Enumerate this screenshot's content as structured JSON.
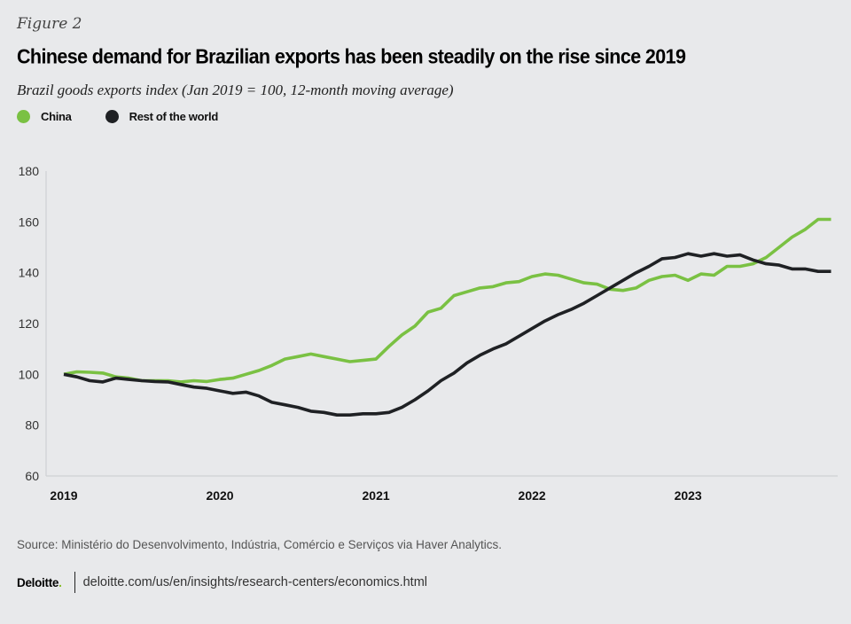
{
  "figure_label": "Figure 2",
  "title": "Chinese demand for Brazilian exports has been steadily on the rise since 2019",
  "subtitle": "Brazil goods exports index (Jan 2019 = 100, 12-month moving average)",
  "legend": [
    {
      "label": "China",
      "color": "#7ac143"
    },
    {
      "label": "Rest of the world",
      "color": "#1f2124"
    }
  ],
  "source": "Source: Ministério do Desenvolvimento, Indústria, Comércio e Serviços via Haver Analytics.",
  "footer": {
    "brand": "Deloitte",
    "brand_dot": ".",
    "url": "deloitte.com/us/en/insights/research-centers/economics.html"
  },
  "chart_data": {
    "type": "line",
    "title": "Chinese demand for Brazilian exports has been steadily on the rise since 2019",
    "subtitle": "Brazil goods exports index (Jan 2019 = 100, 12-month moving average)",
    "xlabel": "",
    "ylabel": "",
    "x_start": "2019-01",
    "x_frequency": "monthly",
    "x_ticks": [
      "2019",
      "2020",
      "2021",
      "2022",
      "2023"
    ],
    "y_ticks": [
      60,
      80,
      100,
      120,
      140,
      160,
      180
    ],
    "ylim": [
      60,
      180
    ],
    "grid": false,
    "legend_position": "top-left",
    "series": [
      {
        "name": "China",
        "color": "#7ac143",
        "values": [
          100,
          101,
          100.8,
          100.5,
          99,
          98.5,
          97.5,
          97.5,
          97.5,
          97,
          97.5,
          97.2,
          98,
          98.5,
          100,
          101.5,
          103.5,
          106,
          107,
          108,
          107,
          106,
          105,
          105.5,
          106,
          111,
          115.5,
          119,
          124.5,
          126,
          131,
          132.5,
          134,
          134.5,
          136,
          136.5,
          138.5,
          139.5,
          139,
          137.5,
          136,
          135.5,
          133.5,
          133,
          134,
          137,
          138.5,
          139,
          137,
          139.5,
          139,
          142.5,
          142.5,
          143.5,
          146,
          150,
          154,
          157,
          161,
          161
        ]
      },
      {
        "name": "Rest of the world",
        "color": "#1f2124",
        "values": [
          100,
          99,
          97.5,
          97,
          98.5,
          98,
          97.5,
          97.2,
          97,
          96,
          95,
          94.5,
          93.5,
          92.5,
          93,
          91.5,
          89,
          88,
          87,
          85.5,
          85,
          84,
          84,
          84.5,
          84.5,
          85,
          87,
          90,
          93.5,
          97.5,
          100.5,
          104.5,
          107.5,
          110,
          112,
          115,
          118,
          121,
          123.5,
          125.5,
          128,
          131,
          134,
          137,
          140,
          142.5,
          145.5,
          146,
          147.5,
          146.5,
          147.5,
          146.5,
          147,
          145,
          143.5,
          143,
          141.5,
          141.5,
          140.5,
          140.5
        ]
      }
    ]
  }
}
